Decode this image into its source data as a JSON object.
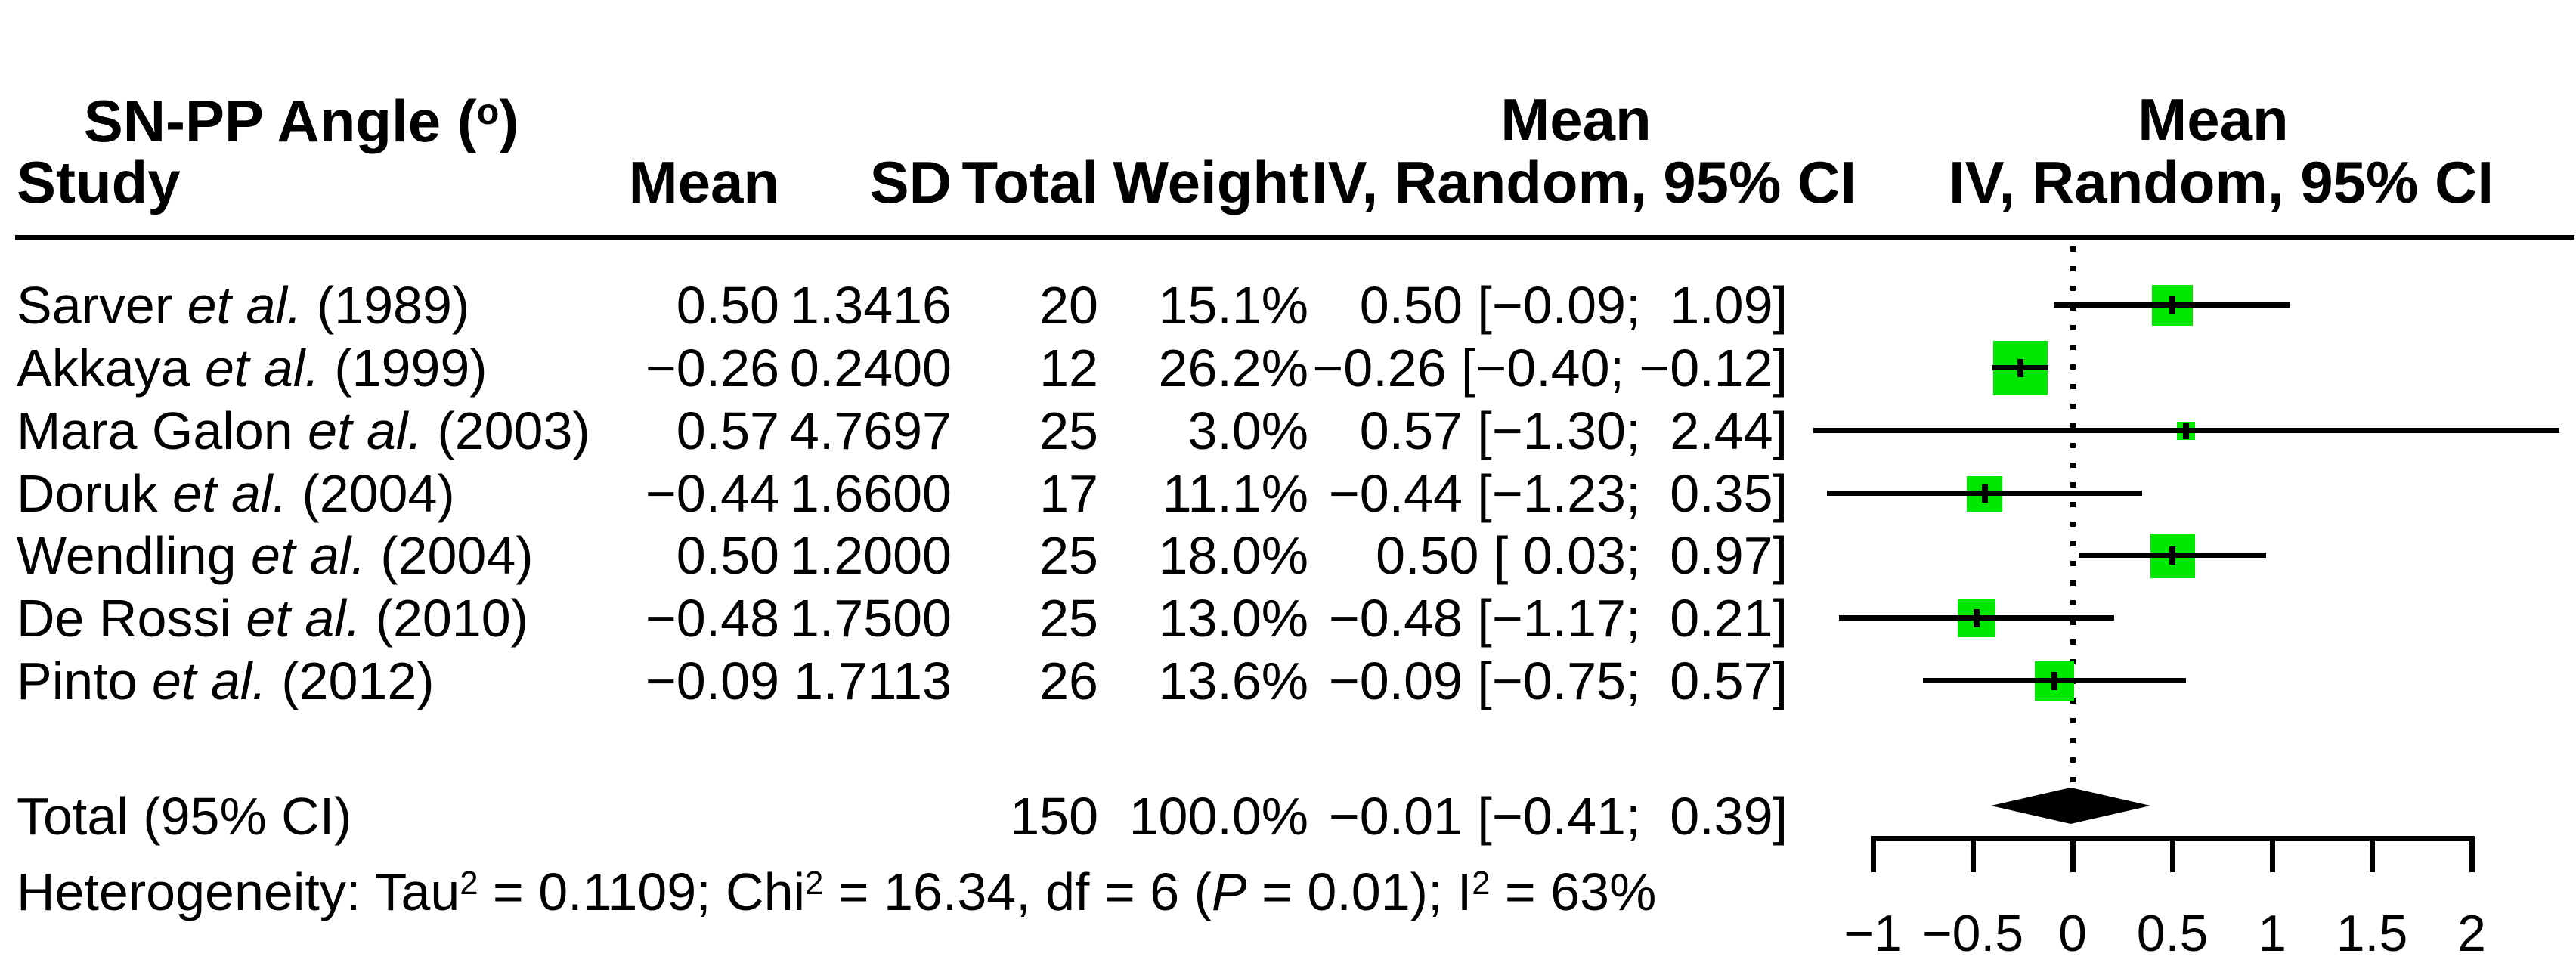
{
  "title": {
    "pre": "SN-PP Angle (",
    "sup": "o",
    "post": ")"
  },
  "header": {
    "study": "Study",
    "mean": "Mean",
    "sd": "SD",
    "total": "Total",
    "weight": "Weight",
    "effect_top": "Mean",
    "effect_bottom": "IV, Random, 95% CI",
    "plot_top": "Mean",
    "plot_bottom": "IV, Random, 95% CI"
  },
  "table": {
    "rows": [
      {
        "study_pre": "Sarver ",
        "study_italic": "et al.",
        "study_post": " (1989)",
        "mean": "0.50",
        "sd": "1.3416",
        "total": "20",
        "weight": "15.1%",
        "effect": "0.50 [−0.09;  1.09]"
      },
      {
        "study_pre": "Akkaya ",
        "study_italic": "et al.",
        "study_post": " (1999)",
        "mean": "−0.26",
        "sd": "0.2400",
        "total": "12",
        "weight": "26.2%",
        "effect": "−0.26 [−0.40; −0.12]"
      },
      {
        "study_pre": "Mara Galon ",
        "study_italic": "et al.",
        "study_post": " (2003)",
        "mean": "0.57",
        "sd": "4.7697",
        "total": "25",
        "weight": "3.0%",
        "effect": "0.57 [−1.30;  2.44]"
      },
      {
        "study_pre": "Doruk ",
        "study_italic": "et al.",
        "study_post": " (2004)",
        "mean": "−0.44",
        "sd": "1.6600",
        "total": "17",
        "weight": "11.1%",
        "effect": "−0.44 [−1.23;  0.35]"
      },
      {
        "study_pre": "Wendling ",
        "study_italic": "et al.",
        "study_post": " (2004)",
        "mean": "0.50",
        "sd": "1.2000",
        "total": "25",
        "weight": "18.0%",
        "effect": "0.50 [ 0.03;  0.97]"
      },
      {
        "study_pre": "De Rossi ",
        "study_italic": "et al.",
        "study_post": " (2010)",
        "mean": "−0.48",
        "sd": "1.7500",
        "total": "25",
        "weight": "13.0%",
        "effect": "−0.48 [−1.17;  0.21]"
      },
      {
        "study_pre": "Pinto ",
        "study_italic": "et al.",
        "study_post": " (2012)",
        "mean": "−0.09",
        "sd": "1.7113",
        "total": "26",
        "weight": "13.6%",
        "effect": "−0.09 [−0.75;  0.57]"
      }
    ],
    "total_row": {
      "label": "Total (95% CI)",
      "total": "150",
      "weight": "100.0%",
      "effect": "−0.01 [−0.41;  0.39]"
    },
    "heterogeneity": {
      "segments": [
        {
          "text": "Heterogeneity: Tau",
          "style": "normal"
        },
        {
          "text": "2",
          "style": "sup"
        },
        {
          "text": " = 0.1109; Chi",
          "style": "normal"
        },
        {
          "text": "2",
          "style": "sup"
        },
        {
          "text": " = 16.34, df = 6 (",
          "style": "normal"
        },
        {
          "text": "P",
          "style": "italic"
        },
        {
          "text": " = 0.01); I",
          "style": "normal"
        },
        {
          "text": "2",
          "style": "sup"
        },
        {
          "text": " = 63%",
          "style": "normal"
        }
      ]
    }
  },
  "chart_data": {
    "type": "forest",
    "title": "SN-PP Angle (°)",
    "effect_measure": "Mean, IV, Random, 95% CI",
    "studies": [
      {
        "label": "Sarver et al. (1989)",
        "mean": 0.5,
        "sd": 1.3416,
        "n": 20,
        "weight_pct": 15.1,
        "ci_low": -0.09,
        "ci_high": 1.09
      },
      {
        "label": "Akkaya et al. (1999)",
        "mean": -0.26,
        "sd": 0.24,
        "n": 12,
        "weight_pct": 26.2,
        "ci_low": -0.4,
        "ci_high": -0.12
      },
      {
        "label": "Mara Galon et al. (2003)",
        "mean": 0.57,
        "sd": 4.7697,
        "n": 25,
        "weight_pct": 3.0,
        "ci_low": -1.3,
        "ci_high": 2.44
      },
      {
        "label": "Doruk et al. (2004)",
        "mean": -0.44,
        "sd": 1.66,
        "n": 17,
        "weight_pct": 11.1,
        "ci_low": -1.23,
        "ci_high": 0.35
      },
      {
        "label": "Wendling et al. (2004)",
        "mean": 0.5,
        "sd": 1.2,
        "n": 25,
        "weight_pct": 18.0,
        "ci_low": 0.03,
        "ci_high": 0.97
      },
      {
        "label": "De Rossi et al. (2010)",
        "mean": -0.48,
        "sd": 1.75,
        "n": 25,
        "weight_pct": 13.0,
        "ci_low": -1.17,
        "ci_high": 0.21
      },
      {
        "label": "Pinto et al. (2012)",
        "mean": -0.09,
        "sd": 1.7113,
        "n": 26,
        "weight_pct": 13.6,
        "ci_low": -0.75,
        "ci_high": 0.57
      }
    ],
    "total": {
      "label": "Total (95% CI)",
      "mean": -0.01,
      "ci_low": -0.41,
      "ci_high": 0.39,
      "n": 150,
      "weight_pct": 100.0
    },
    "heterogeneity": {
      "tau2": 0.1109,
      "chi2": 16.34,
      "df": 6,
      "p": 0.01,
      "i2_pct": 63
    },
    "x_axis": {
      "range": [
        -1,
        2
      ],
      "ticks": [
        -1,
        -0.5,
        0,
        0.5,
        1,
        1.5,
        2
      ],
      "tick_labels": [
        "−1",
        "−0.5",
        "0",
        "0.5",
        "1",
        "1.5",
        "2"
      ],
      "zero_line": 0
    },
    "marker_color": "#00E800",
    "line_color": "#000000",
    "legend_position": "none",
    "grid": false
  }
}
